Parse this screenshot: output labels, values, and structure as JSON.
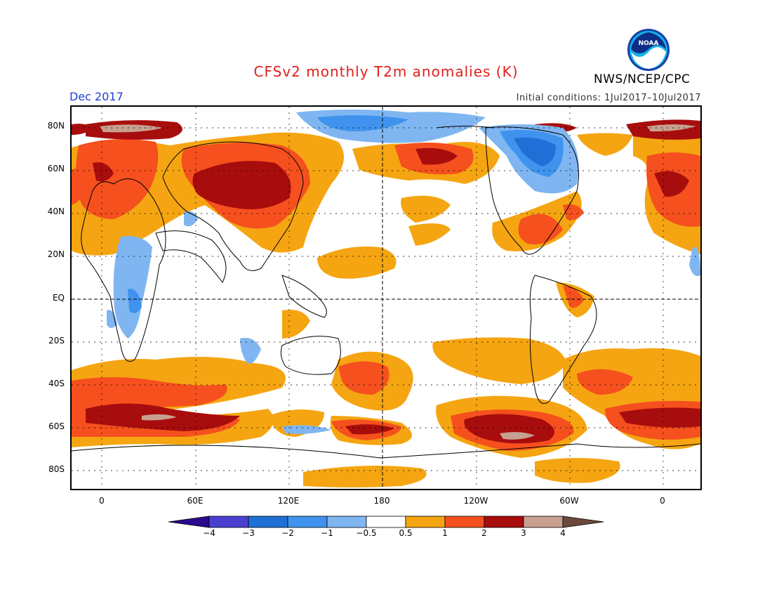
{
  "title": "CFSv2 monthly T2m anomalies (K)",
  "month": "Dec 2017",
  "initial_conditions": "Initial conditions: 1Jul2017–10Jul2017",
  "agency": "NWS/NCEP/CPC",
  "logo_text": "NOAA",
  "y_axis_labels": [
    "80N",
    "60N",
    "40N",
    "20N",
    "EQ",
    "20S",
    "40S",
    "60S",
    "80S"
  ],
  "x_axis_labels": [
    "0",
    "60E",
    "120E",
    "180",
    "120W",
    "60W",
    "0"
  ],
  "colorbar": {
    "labels": [
      "−4",
      "−3",
      "−2",
      "−1",
      "−0.5",
      "0.5",
      "1",
      "2",
      "3",
      "4"
    ],
    "colors": [
      "#2a0a8e",
      "#4a40d0",
      "#1f6fd6",
      "#3f93ee",
      "#7fb6f2",
      "#ffffff",
      "#f5a511",
      "#f5501e",
      "#a80d0d",
      "#c8a090",
      "#6b4a3c"
    ]
  }
}
